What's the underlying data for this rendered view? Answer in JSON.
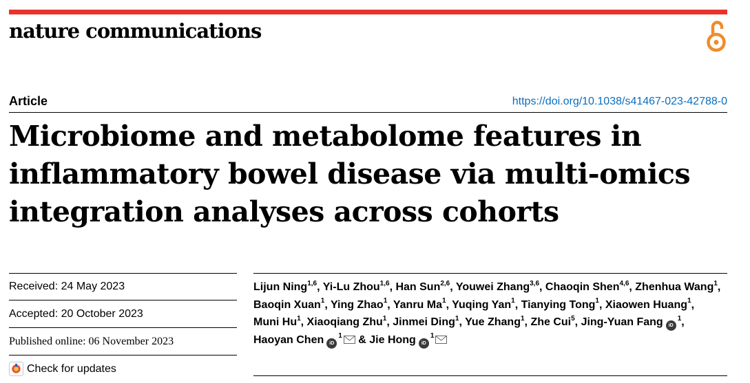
{
  "header": {
    "journal": "nature communications",
    "brand_color": "#e8332c",
    "open_access_color": "#f08c2a"
  },
  "article": {
    "type": "Article",
    "doi": "https://doi.org/10.1038/s41467-023-42788-0",
    "doi_color": "#0a6ebd",
    "title": "Microbiome and metabolome features in inflammatory bowel disease via multi-omics integration analyses across cohorts"
  },
  "dates": {
    "received": "Received: 24 May 2023",
    "accepted": "Accepted: 20 October 2023",
    "published": "Published online: 06 November 2023"
  },
  "check_updates": {
    "label": "Check for updates"
  },
  "authors": [
    {
      "name": "Lijun Ning",
      "aff": "1,6"
    },
    {
      "name": "Yi-Lu Zhou",
      "aff": "1,6"
    },
    {
      "name": "Han Sun",
      "aff": "2,6"
    },
    {
      "name": "Youwei Zhang",
      "aff": "3,6"
    },
    {
      "name": "Chaoqin Shen",
      "aff": "4,6"
    },
    {
      "name": "Zhenhua Wang",
      "aff": "1"
    },
    {
      "name": "Baoqin Xuan",
      "aff": "1"
    },
    {
      "name": "Ying Zhao",
      "aff": "1"
    },
    {
      "name": "Yanru Ma",
      "aff": "1"
    },
    {
      "name": "Yuqing Yan",
      "aff": "1"
    },
    {
      "name": "Tianying Tong",
      "aff": "1"
    },
    {
      "name": "Xiaowen Huang",
      "aff": "1"
    },
    {
      "name": "Muni Hu",
      "aff": "1"
    },
    {
      "name": "Xiaoqiang Zhu",
      "aff": "1"
    },
    {
      "name": "Jinmei Ding",
      "aff": "1"
    },
    {
      "name": "Yue Zhang",
      "aff": "1"
    },
    {
      "name": "Zhe Cui",
      "aff": "5"
    },
    {
      "name": "Jing-Yuan Fang",
      "aff": "1"
    },
    {
      "name": "Haoyan Chen",
      "aff": "1"
    },
    {
      "name": "Jie Hong",
      "aff": "1"
    }
  ]
}
